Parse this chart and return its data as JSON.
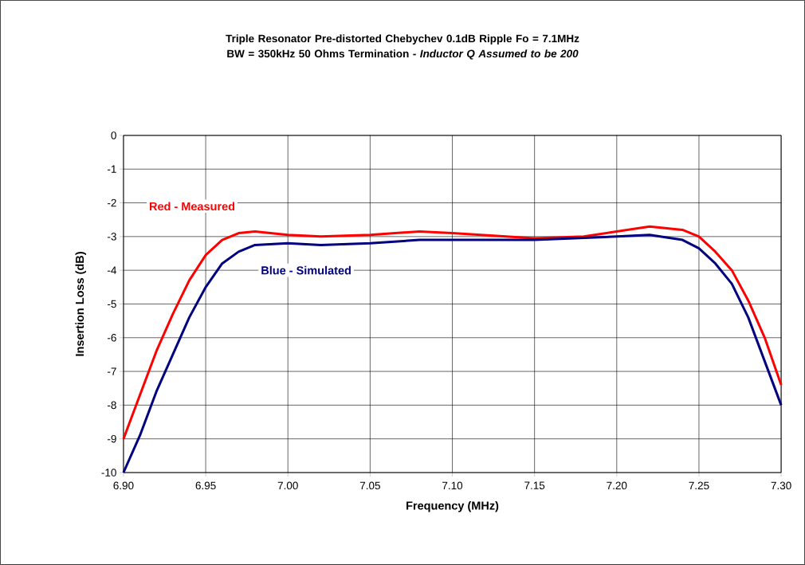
{
  "chart_data": {
    "type": "line",
    "title": "Triple Resonator Pre-distorted Chebychev 0.1dB Ripple Fo = 7.1MHz BW = 350kHz 50 Ohms Termination - *Inductor Q Assumed to be 200*",
    "xlabel": "Frequency (MHz)",
    "ylabel": "Insertion Loss (dB)",
    "xlim": [
      6.9,
      7.3
    ],
    "xticks": [
      {
        "value": 6.9,
        "label": "6.90"
      },
      6.95,
      {
        "value": 7.0,
        "label": "7.00"
      },
      7.05,
      {
        "value": 7.1,
        "label": "7.10"
      },
      7.15,
      {
        "value": 7.2,
        "label": "7.20"
      },
      7.25,
      {
        "value": 7.3,
        "label": "7.30"
      }
    ],
    "ylim": [
      -10,
      0
    ],
    "yticks": [
      -10,
      -9,
      -8,
      -7,
      -6,
      -5,
      -4,
      -3,
      -2,
      -1,
      0
    ],
    "grid": true,
    "marker": "none",
    "line_style": "solid",
    "series": [
      {
        "name": "Red - Measured",
        "color": "#ff0000",
        "x": [
          6.9,
          6.91,
          6.92,
          6.93,
          6.94,
          6.95,
          6.96,
          6.97,
          6.98,
          7.0,
          7.02,
          7.05,
          7.08,
          7.1,
          7.15,
          7.18,
          7.2,
          7.22,
          7.24,
          7.25,
          7.26,
          7.27,
          7.28,
          7.29,
          7.3
        ],
        "values": [
          -9.0,
          -7.7,
          -6.4,
          -5.3,
          -4.3,
          -3.55,
          -3.1,
          -2.9,
          -2.85,
          -2.95,
          -3.0,
          -2.95,
          -2.85,
          -2.9,
          -3.05,
          -3.0,
          -2.85,
          -2.7,
          -2.8,
          -3.0,
          -3.45,
          -4.0,
          -4.9,
          -6.0,
          -7.4
        ]
      },
      {
        "name": "Blue - Simulated",
        "color": "#000080",
        "x": [
          6.9,
          6.91,
          6.92,
          6.93,
          6.94,
          6.95,
          6.96,
          6.97,
          6.98,
          7.0,
          7.02,
          7.05,
          7.08,
          7.1,
          7.15,
          7.2,
          7.22,
          7.24,
          7.25,
          7.26,
          7.27,
          7.28,
          7.29,
          7.3
        ],
        "values": [
          -10.0,
          -8.9,
          -7.6,
          -6.5,
          -5.4,
          -4.5,
          -3.8,
          -3.45,
          -3.25,
          -3.2,
          -3.25,
          -3.2,
          -3.1,
          -3.1,
          -3.1,
          -3.0,
          -2.95,
          -3.1,
          -3.35,
          -3.8,
          -4.4,
          -5.4,
          -6.7,
          -8.0
        ]
      }
    ]
  }
}
